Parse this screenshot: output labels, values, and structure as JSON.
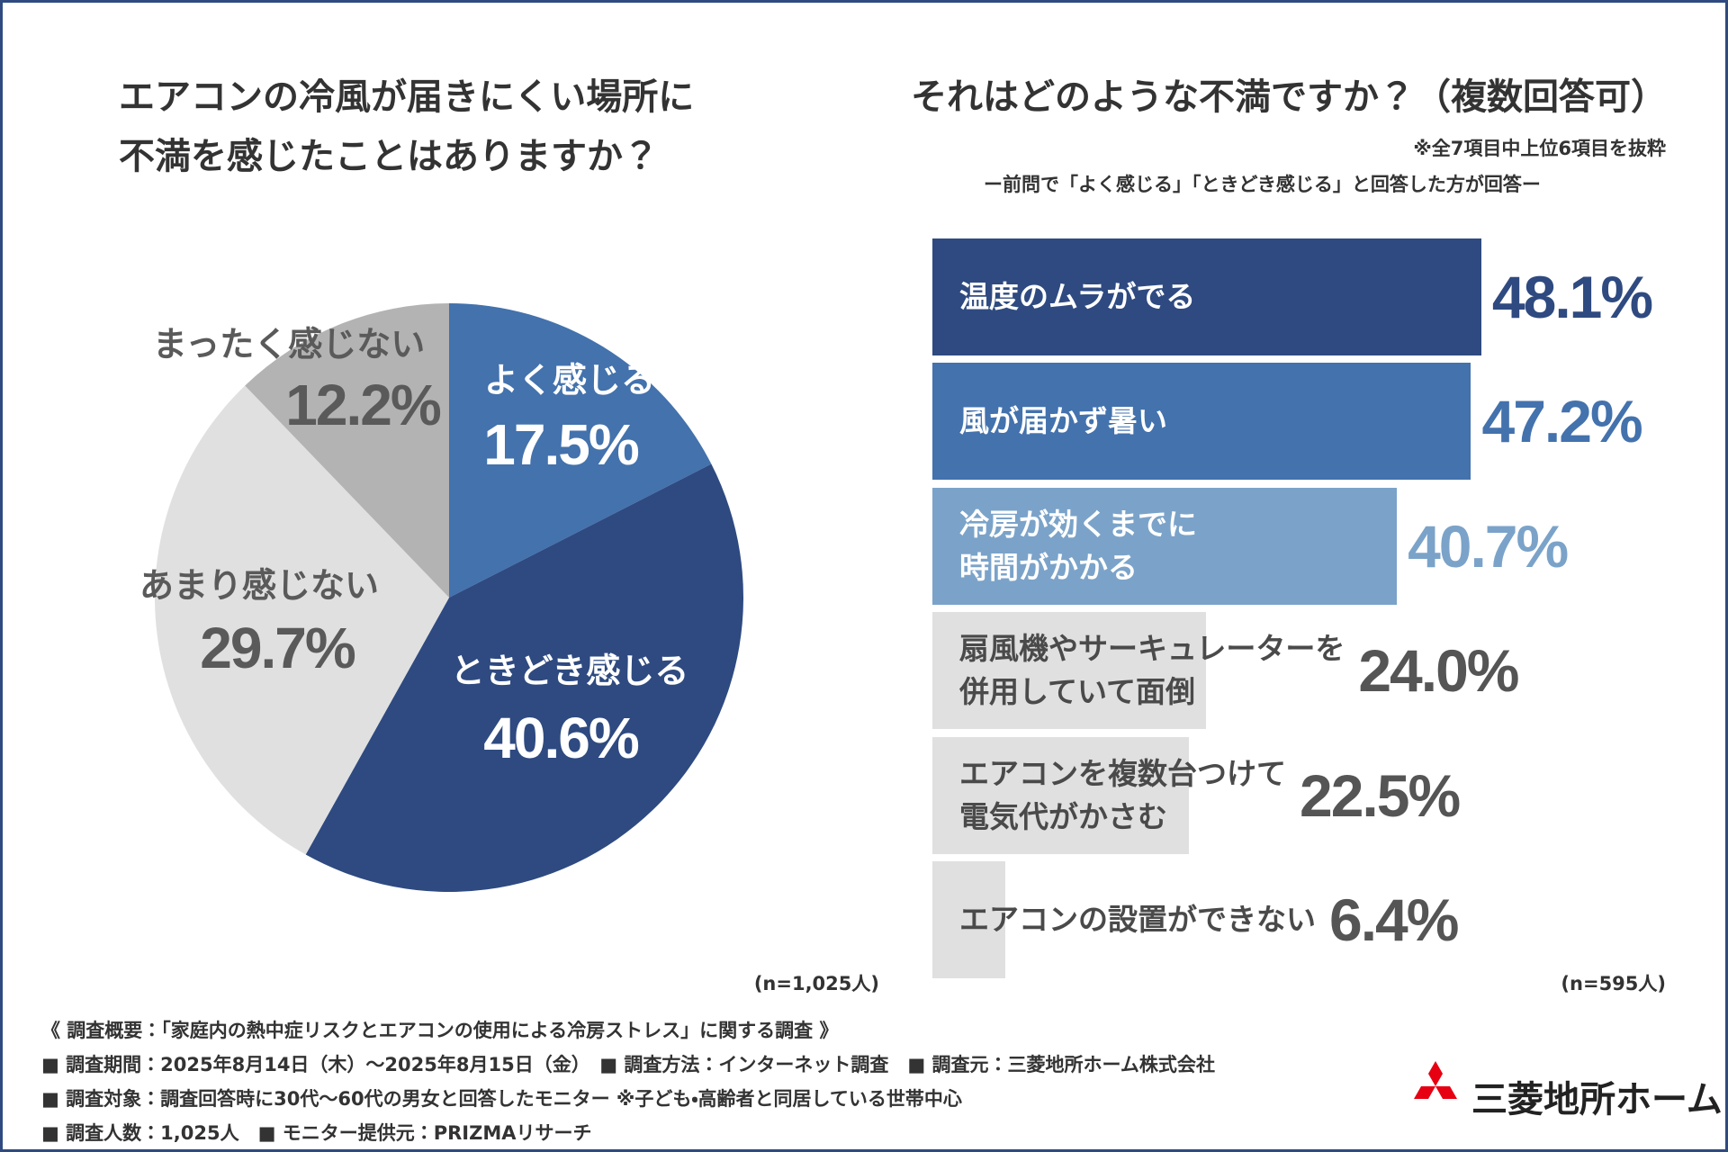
{
  "chart_data": [
    {
      "type": "pie",
      "title": [
        "エアコンの冷風が届きにくい場所に",
        "不満を感じたことはありますか？"
      ],
      "categories": [
        "よく感じる",
        "ときどき感じる",
        "あまり感じない",
        "まったく感じない"
      ],
      "values": [
        17.5,
        40.6,
        29.7,
        12.2
      ],
      "value_labels": [
        "17.5%",
        "40.6%",
        "29.7%",
        "12.2%"
      ],
      "colors": [
        "#4372ad",
        "#2e4a80",
        "#e0e0e0",
        "#b3b3b3"
      ],
      "label_colors": [
        "#ffffff",
        "#ffffff",
        "#5a5a5a",
        "#5a5a5a"
      ],
      "note": "(n=1,025人)"
    },
    {
      "type": "bar",
      "title": "それはどのような不満ですか？（複数回答可）",
      "subtitle": "※全7項目中上位6項目を抜粋",
      "subtitle2": "ー前問で「よく感じる」「ときどき感じる」と回答した方が回答ー",
      "categories": [
        "温度のムラがでる",
        "風が届かず暑い",
        "冷房が効くまでに\n時間がかかる",
        "扇風機やサーキュレーターを\n併用していて面倒",
        "エアコンを複数台つけて\n電気代がかさむ",
        "エアコンの設置ができない"
      ],
      "values": [
        48.1,
        47.2,
        40.7,
        24.0,
        22.5,
        6.4
      ],
      "value_labels": [
        "48.1%",
        "47.2%",
        "40.7%",
        "24.0%",
        "22.5%",
        "6.4%"
      ],
      "colors": [
        "#2e4a80",
        "#4372ad",
        "#7ba3c9",
        "#e0e0e0",
        "#e0e0e0",
        "#e0e0e0"
      ],
      "label_colors": [
        "#ffffff",
        "#ffffff",
        "#ffffff",
        "#4a4a4a",
        "#4a4a4a",
        "#4a4a4a"
      ],
      "value_colors": [
        "#2e4a80",
        "#4372ad",
        "#7ba3c9",
        "#555555",
        "#555555",
        "#555555"
      ],
      "note": "(n=595人)"
    }
  ],
  "footer": {
    "lines": [
      "《 調査概要：「家庭内の熱中症リスクとエアコンの使用による冷房ストレス」に関する調査 》",
      "■ 調査期間：2025年8月14日（木）～2025年8月15日（金）　■ 調査方法：インターネット調査　■ 調査元：三菱地所ホーム株式会社",
      "■ 調査対象：調査回答時に30代～60代の男女と回答したモニター ※子ども・高齢者と同居している世帯中心",
      "■ 調査人数：1,025人　■ モニター提供元：PRIZMAリサーチ"
    ],
    "logo": "三菱地所ホーム"
  }
}
